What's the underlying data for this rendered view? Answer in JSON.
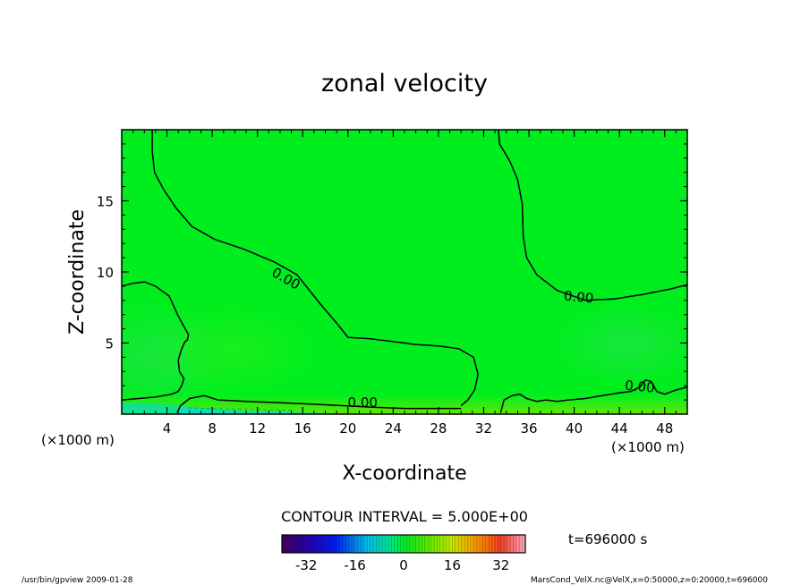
{
  "chart_data": {
    "type": "heatmap",
    "title": "zonal velocity",
    "xlabel": "X-coordinate",
    "ylabel": "Z-coordinate",
    "x_unit_left": "(×1000 m)",
    "x_unit_right": "(×1000 m)",
    "xlim": [
      0,
      50
    ],
    "ylim": [
      0,
      20
    ],
    "x_ticks": [
      4,
      8,
      12,
      16,
      20,
      24,
      28,
      32,
      36,
      40,
      44,
      48
    ],
    "y_ticks": [
      5,
      10,
      15
    ],
    "contour_interval_text": "CONTOUR INTERVAL = 5.000E+00",
    "time_text": "t=696000 s",
    "contour_levels": [
      0.0
    ],
    "contour_labels": [
      {
        "text": "0.00",
        "x": 14.5,
        "y": 9.5,
        "angle": 30
      },
      {
        "text": "0.00",
        "x": 40.4,
        "y": 8.2,
        "angle": 5
      },
      {
        "text": "0.00",
        "x": 45.8,
        "y": 1.9,
        "angle": 5
      },
      {
        "text": "0.00",
        "x": 21.3,
        "y": 0.8,
        "angle": 0
      }
    ],
    "contours": [
      {
        "level": 0.0,
        "points": [
          [
            2.7,
            20
          ],
          [
            2.7,
            18.5
          ],
          [
            2.9,
            17
          ],
          [
            3.7,
            15.8
          ],
          [
            4.8,
            14.5
          ],
          [
            6.2,
            13.2
          ],
          [
            8.2,
            12.3
          ],
          [
            10.8,
            11.6
          ],
          [
            13.5,
            10.7
          ],
          [
            15.5,
            9.8
          ],
          [
            17.5,
            7.8
          ],
          [
            19.0,
            6.4
          ],
          [
            20.0,
            5.4
          ],
          [
            22.0,
            5.3
          ],
          [
            24.0,
            5.1
          ],
          [
            26.0,
            4.9
          ],
          [
            28.0,
            4.8
          ],
          [
            29.8,
            4.6
          ],
          [
            31.1,
            4.0
          ],
          [
            31.5,
            2.8
          ],
          [
            31.2,
            1.7
          ],
          [
            30.6,
            1.0
          ],
          [
            30.0,
            0.6
          ]
        ]
      },
      {
        "level": 0.0,
        "points": [
          [
            33.3,
            20
          ],
          [
            33.4,
            19
          ],
          [
            34.3,
            17.8
          ],
          [
            35.0,
            16.5
          ],
          [
            35.4,
            14.8
          ],
          [
            35.5,
            12.5
          ],
          [
            35.8,
            11.0
          ],
          [
            36.7,
            9.8
          ],
          [
            38.5,
            8.7
          ],
          [
            41.0,
            8.0
          ],
          [
            43.5,
            8.1
          ],
          [
            46.0,
            8.4
          ],
          [
            48.5,
            8.8
          ],
          [
            50,
            9.1
          ]
        ]
      },
      {
        "level": 0.0,
        "points": [
          [
            0,
            9.0
          ],
          [
            1.0,
            9.2
          ],
          [
            2.0,
            9.3
          ],
          [
            3.0,
            9.0
          ],
          [
            3.5,
            8.7
          ],
          [
            4.2,
            8.3
          ],
          [
            4.6,
            7.6
          ],
          [
            5.0,
            6.9
          ],
          [
            5.4,
            6.3
          ],
          [
            5.9,
            5.6
          ],
          [
            5.8,
            5.2
          ],
          [
            5.6,
            5.1
          ],
          [
            5.3,
            4.6
          ],
          [
            5.0,
            3.8
          ],
          [
            5.1,
            3.0
          ],
          [
            5.5,
            2.5
          ],
          [
            5.3,
            2.0
          ],
          [
            5.0,
            1.6
          ],
          [
            4.4,
            1.4
          ],
          [
            3.0,
            1.2
          ],
          [
            1.5,
            1.1
          ],
          [
            0,
            1.0
          ]
        ]
      },
      {
        "level": 0.0,
        "points": [
          [
            4.9,
            0.1
          ],
          [
            5.2,
            0.6
          ],
          [
            6.0,
            1.1
          ],
          [
            7.3,
            1.3
          ],
          [
            8.5,
            1.0
          ],
          [
            11.0,
            0.9
          ],
          [
            14.0,
            0.8
          ],
          [
            17.0,
            0.7
          ],
          [
            19.5,
            0.6
          ],
          [
            22.0,
            0.5
          ],
          [
            25.0,
            0.4
          ],
          [
            28.0,
            0.4
          ],
          [
            30.0,
            0.4
          ]
        ]
      },
      {
        "level": 0.0,
        "points": [
          [
            33.5,
            0.1
          ],
          [
            33.8,
            1.0
          ],
          [
            34.5,
            1.3
          ],
          [
            35.2,
            1.4
          ],
          [
            35.8,
            1.1
          ],
          [
            36.7,
            0.9
          ],
          [
            37.5,
            1.0
          ],
          [
            38.5,
            0.9
          ],
          [
            39.5,
            1.0
          ],
          [
            41.0,
            1.1
          ],
          [
            42.5,
            1.3
          ],
          [
            44.0,
            1.5
          ],
          [
            45.0,
            1.6
          ],
          [
            45.8,
            1.9
          ],
          [
            46.3,
            2.4
          ],
          [
            46.8,
            2.3
          ],
          [
            47.3,
            1.6
          ],
          [
            48.0,
            1.4
          ],
          [
            49.0,
            1.7
          ],
          [
            50,
            1.9
          ]
        ]
      }
    ],
    "colorbar": {
      "min": -40,
      "max": 40,
      "ticks": [
        -32,
        -16,
        0,
        16,
        32
      ]
    }
  },
  "footer": {
    "left": "/usr/bin/gpview   2009-01-28",
    "right": "MarsCond_VelX.nc@VelX,x=0:50000,z=0:20000,t=696000"
  },
  "colors": {
    "field_base": "#00ee1e",
    "contour": "#000000",
    "background": "#ffffff"
  }
}
